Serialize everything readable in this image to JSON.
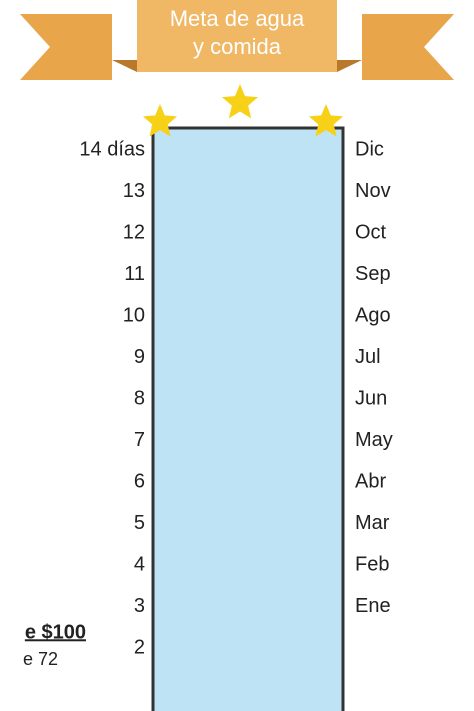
{
  "banner": {
    "lines": [
      "Meta de agua",
      "y comida"
    ]
  },
  "days": [
    "14 días",
    "13",
    "12",
    "11",
    "10",
    "9",
    "8",
    "7",
    "6",
    "5",
    "4",
    "3",
    "2"
  ],
  "months": [
    "Dic",
    "Nov",
    "Oct",
    "Sep",
    "Ago",
    "Jul",
    "Jun",
    "May",
    "Abr",
    "Mar",
    "Feb",
    "Ene"
  ],
  "note": {
    "title": "e $100",
    "text": "e 72"
  }
}
